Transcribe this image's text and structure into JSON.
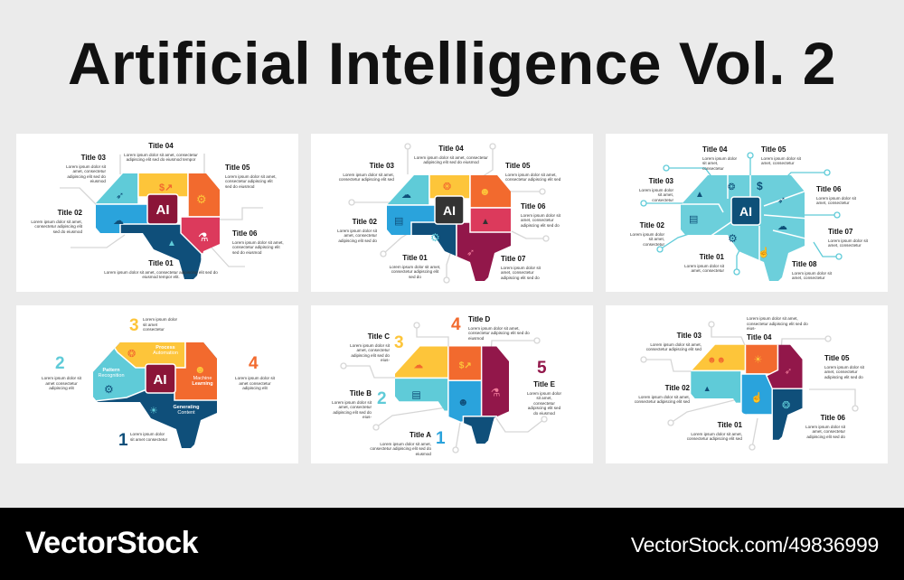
{
  "header": {
    "title": "Artificial Intelligence Vol. 2"
  },
  "colors": {
    "teal": "#5fcbd8",
    "blue": "#2aa3dc",
    "yellow": "#fdc53a",
    "orange": "#f26a2e",
    "red": "#dc3a5c",
    "navy": "#0f4f7a",
    "maroon": "#92174a",
    "chip_dark": "#333333",
    "chip_navy": "#0e5078"
  },
  "panels": [
    {
      "chip": "AI",
      "items": [
        {
          "title": "Title 01",
          "desc": "Lorem ipsum dolor sit amet, consectetur adipiscing elit sed do eiusmod tempor elit."
        },
        {
          "title": "Title 02",
          "desc": "Lorem ipsum dolor sit amet, consectetur adipiscing elit sed do eiusmod"
        },
        {
          "title": "Title 03",
          "desc": "Lorem ipsum dolor sit amet, consectetur adipiscing elit sed do eiusmod"
        },
        {
          "title": "Title 04",
          "desc": "Lorem ipsum dolor sit amet, consectetur adipiscing elit sed do eiusmod tempor"
        },
        {
          "title": "Title 05",
          "desc": "Lorem ipsum dolor sit amet, consectetur adipiscing elit sed do eiusmod"
        },
        {
          "title": "Title 06",
          "desc": "Lorem ipsum dolor sit amet, consectetur adipiscing elit sed do eiusmod"
        }
      ]
    },
    {
      "chip": "AI",
      "items": [
        {
          "title": "Title 01",
          "desc": "Lorem ipsum dolor sit amet, consectetur adipiscing elit sed do"
        },
        {
          "title": "Title 02",
          "desc": "Lorem ipsum dolor sit amet, consectetur adipiscing elit sed do"
        },
        {
          "title": "Title 03",
          "desc": "Lorem ipsum dolor sit amet, consectetur adipiscing elit sed"
        },
        {
          "title": "Title 04",
          "desc": "Lorem ipsum dolor sit amet, consectetur adipiscing elit sed do eiusmod"
        },
        {
          "title": "Title 05",
          "desc": "Lorem ipsum dolor sit amet, consectetur adipiscing elit sed"
        },
        {
          "title": "Title 06",
          "desc": "Lorem ipsum dolor sit amet, consectetur adipiscing elit sed do"
        },
        {
          "title": "Title 07",
          "desc": "Lorem ipsum dolor sit amet, consectetur adipiscing elit sed do"
        }
      ]
    },
    {
      "chip": "AI",
      "items": [
        {
          "title": "Title 01",
          "desc": "Lorem ipsum dolor sit amet, consectetur"
        },
        {
          "title": "Title 02",
          "desc": "Lorem ipsum dolor sit amet, consectetur"
        },
        {
          "title": "Title 03",
          "desc": "Lorem ipsum dolor sit amet, consectetur"
        },
        {
          "title": "Title 04",
          "desc": "Lorem ipsum dolor sit amet, consectetur"
        },
        {
          "title": "Title 05",
          "desc": "Lorem ipsum dolor sit amet, consectetur"
        },
        {
          "title": "Title 06",
          "desc": "Lorem ipsum dolor sit amet, consectetur"
        },
        {
          "title": "Title 07",
          "desc": "Lorem ipsum dolor sit amet, consectetur"
        },
        {
          "title": "Title 08",
          "desc": "Lorem ipsum dolor sit amet, consectetur"
        }
      ]
    },
    {
      "chip": "AI",
      "items": [
        {
          "number": "1",
          "desc": "Lorem ipsum dolor sit amet consectetur"
        },
        {
          "number": "2",
          "desc": "Lorem ipsum dolor sit amet consectetur adipiscing elit"
        },
        {
          "number": "3",
          "desc": "Lorem ipsum dolor sit amet consectetur"
        },
        {
          "number": "4",
          "desc": "Lorem ipsum dolor sit amet consectetur adipiscing elit"
        }
      ],
      "segments": [
        {
          "bold": "Process",
          "light": "Automation"
        },
        {
          "bold": "Pattern",
          "light": "Recognition"
        },
        {
          "light": "Machine",
          "bold": "Learning"
        },
        {
          "bold": "Generating",
          "light": "Content"
        }
      ]
    },
    {
      "items": [
        {
          "number": "1",
          "title": "Title A",
          "desc": "Lorem ipsum dolor sit amet, consectetur adipiscing elit sed do eiusmod"
        },
        {
          "number": "2",
          "title": "Title B",
          "desc": "Lorem ipsum dolor sit amet, consectetur adipiscing elit sed do eius-"
        },
        {
          "number": "3",
          "title": "Title C",
          "desc": "Lorem ipsum dolor sit amet, consectetur adipiscing elit sed do eius-"
        },
        {
          "number": "4",
          "title": "Title D",
          "desc": "Lorem ipsum dolor sit amet, consectetur adipiscing elit sed do eiusmod"
        },
        {
          "number": "5",
          "title": "Title E",
          "desc": "Lorem ipsum dolor sit amet, consectetur adipiscing elit sed do eiusmod"
        }
      ]
    },
    {
      "items": [
        {
          "title": "Title 01",
          "desc": "Lorem ipsum dolor sit amet, consectetur adipiscing elit sed"
        },
        {
          "title": "Title 02",
          "desc": "Lorem ipsum dolor sit amet, consectetur adipiscing elit sed"
        },
        {
          "title": "Title 03",
          "desc": "Lorem ipsum dolor sit amet, consectetur adipiscing elit sed"
        },
        {
          "title": "Title 04",
          "desc": "Lorem ipsum dolor sit amet, consectetur adipiscing elit sed do eius-"
        },
        {
          "title": "Title 05",
          "desc": "Lorem ipsum dolor sit amet, consectetur adipiscing elit sed do"
        },
        {
          "title": "Title 06",
          "desc": "Lorem ipsum dolor sit amet, consectetur adipiscing elit sed do"
        }
      ]
    }
  ],
  "footer": {
    "brand": "VectorStock",
    "url": "VectorStock.com/49836999"
  }
}
